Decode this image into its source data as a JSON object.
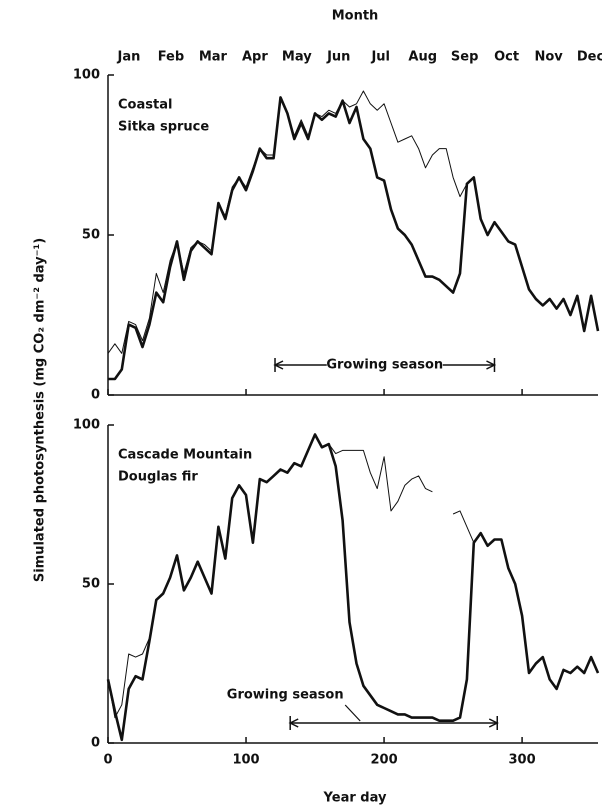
{
  "chart_data": [
    {
      "type": "line",
      "title": "Month",
      "categories": [
        "Jan",
        "Feb",
        "Mar",
        "Apr",
        "May",
        "Jun",
        "Jul",
        "Aug",
        "Sep",
        "Oct",
        "Nov",
        "Dec"
      ],
      "ylabel": "Simulated photosynthesis (mg CO₂ dm⁻² day⁻¹)",
      "annotations": [
        {
          "text": "Coastal"
        },
        {
          "text": "Sitka spruce"
        },
        {
          "text": "Growing season",
          "span": [
            121,
            280
          ]
        }
      ],
      "x": [
        0,
        5,
        10,
        15,
        20,
        25,
        30,
        35,
        40,
        45,
        50,
        55,
        60,
        65,
        70,
        75,
        80,
        85,
        90,
        95,
        100,
        105,
        110,
        115,
        120,
        125,
        130,
        135,
        140,
        145,
        150,
        155,
        160,
        165,
        170,
        175,
        180,
        185,
        190,
        195,
        200,
        205,
        210,
        215,
        220,
        225,
        230,
        235,
        240,
        245,
        250,
        255,
        260,
        265,
        270,
        275,
        280,
        285,
        290,
        295,
        300,
        305,
        310,
        315,
        320,
        325,
        330,
        335,
        340,
        345,
        350,
        355
      ],
      "xlim": [
        0,
        355
      ],
      "xticks": [
        0,
        100,
        200,
        300
      ],
      "ylim": [
        0,
        100
      ],
      "yticks": [
        0,
        50,
        100
      ],
      "series": [
        {
          "color": "#111111",
          "line_width": 1,
          "values": [
            13,
            16,
            13,
            23,
            22,
            17,
            24,
            38,
            32,
            42,
            48,
            38,
            46,
            48,
            47,
            45,
            60,
            56,
            65,
            68,
            65,
            71,
            77,
            75,
            75,
            93,
            88,
            81,
            86,
            81,
            88,
            87,
            89,
            88,
            92,
            90,
            91,
            95,
            91,
            89,
            91,
            85,
            79,
            80,
            81,
            77,
            71,
            75,
            77,
            77,
            68,
            62,
            66,
            68,
            55,
            50,
            54,
            51,
            48,
            47,
            40,
            33,
            30,
            28,
            30,
            27,
            30,
            25,
            31,
            20,
            31,
            20
          ]
        },
        {
          "color": "#111111",
          "line_width": 2.6,
          "values": [
            5,
            5,
            8,
            22,
            21,
            15,
            22,
            32,
            29,
            40,
            48,
            36,
            45,
            48,
            46,
            44,
            60,
            55,
            64,
            68,
            64,
            70,
            77,
            74,
            74,
            93,
            88,
            80,
            85,
            80,
            88,
            86,
            88,
            87,
            92,
            85,
            90,
            80,
            77,
            68,
            67,
            58,
            52,
            50,
            47,
            42,
            37,
            37,
            36,
            34,
            32,
            38,
            66,
            68,
            55,
            50,
            54,
            51,
            48,
            47,
            40,
            33,
            30,
            28,
            30,
            27,
            30,
            25,
            31,
            20,
            31,
            20
          ]
        }
      ]
    },
    {
      "type": "line",
      "xlabel": "Year day",
      "annotations": [
        {
          "text": "Cascade Mountain"
        },
        {
          "text": "Douglas fir"
        },
        {
          "text": "Growing season",
          "span": [
            132,
            282
          ]
        }
      ],
      "x": [
        0,
        5,
        10,
        15,
        20,
        25,
        30,
        35,
        40,
        45,
        50,
        55,
        60,
        65,
        70,
        75,
        80,
        85,
        90,
        95,
        100,
        105,
        110,
        115,
        120,
        125,
        130,
        135,
        140,
        145,
        150,
        155,
        160,
        165,
        170,
        175,
        180,
        185,
        190,
        195,
        200,
        205,
        210,
        215,
        220,
        225,
        230,
        235,
        240,
        245,
        250,
        255,
        260,
        265,
        270,
        275,
        280,
        285,
        290,
        295,
        300,
        305,
        310,
        315,
        320,
        325,
        330,
        335,
        340,
        345,
        350,
        355
      ],
      "xlim": [
        0,
        355
      ],
      "xticks": [
        0,
        100,
        200,
        300
      ],
      "ylim": [
        0,
        100
      ],
      "yticks": [
        0,
        50,
        100
      ],
      "series": [
        {
          "color": "#111111",
          "line_width": 1,
          "values": [
            20,
            8,
            12,
            28,
            27,
            28,
            33,
            45,
            47,
            52,
            59,
            48,
            52,
            57,
            52,
            47,
            68,
            58,
            77,
            81,
            78,
            63,
            83,
            82,
            84,
            86,
            85,
            88,
            87,
            92,
            97,
            93,
            94,
            91,
            92,
            92,
            92,
            92,
            85,
            80,
            90,
            73,
            76,
            81,
            83,
            84,
            80,
            79,
            null,
            null,
            72,
            73,
            68,
            63,
            66,
            62,
            64,
            64,
            55,
            50,
            40,
            22,
            25,
            27,
            20,
            17,
            23,
            22,
            24,
            22,
            27,
            22
          ]
        },
        {
          "color": "#111111",
          "line_width": 2.6,
          "values": [
            20,
            10,
            1,
            17,
            21,
            20,
            32,
            45,
            47,
            52,
            59,
            48,
            52,
            57,
            52,
            47,
            68,
            58,
            77,
            81,
            78,
            63,
            83,
            82,
            84,
            86,
            85,
            88,
            87,
            92,
            97,
            93,
            94,
            87,
            70,
            38,
            25,
            18,
            15,
            12,
            11,
            10,
            9,
            9,
            8,
            8,
            8,
            8,
            7,
            7,
            7,
            8,
            20,
            63,
            66,
            62,
            64,
            64,
            55,
            50,
            40,
            22,
            25,
            27,
            20,
            17,
            23,
            22,
            24,
            22,
            27,
            22
          ]
        }
      ]
    }
  ]
}
